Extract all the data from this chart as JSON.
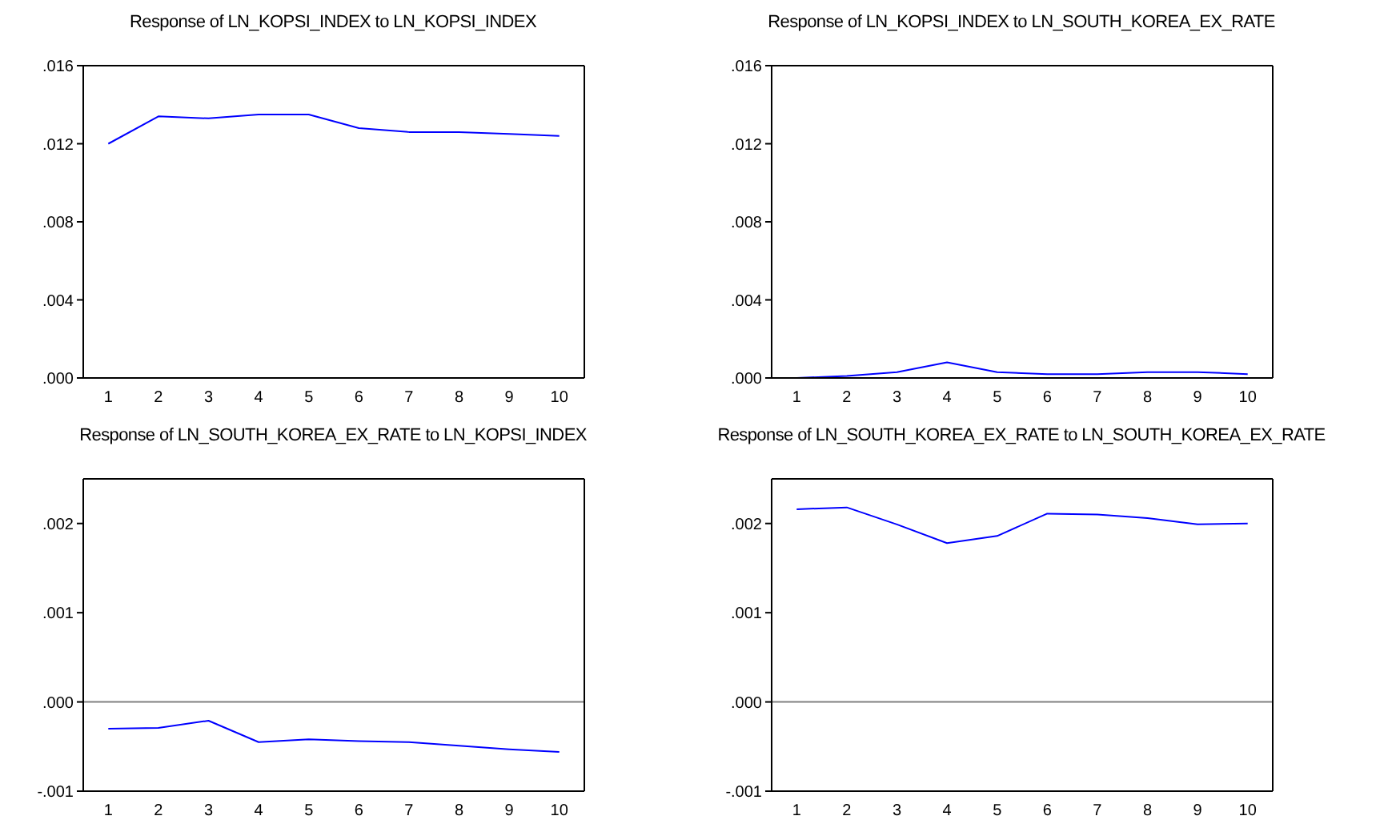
{
  "chart_data": [
    {
      "type": "line",
      "title": "Response of LN_KOPSI_INDEX to LN_KOPSI_INDEX",
      "categories": [
        "1",
        "2",
        "3",
        "4",
        "5",
        "6",
        "7",
        "8",
        "9",
        "10"
      ],
      "series": [
        {
          "color": "#0000ff",
          "values": [
            0.012,
            0.0134,
            0.0133,
            0.0135,
            0.0135,
            0.0128,
            0.0126,
            0.0126,
            0.0125,
            0.0124
          ]
        }
      ],
      "ylim": [
        0,
        0.016
      ],
      "yticks": [
        {
          "value": 0,
          "label": ".000"
        },
        {
          "value": 0.004,
          "label": ".004"
        },
        {
          "value": 0.008,
          "label": ".008"
        },
        {
          "value": 0.012,
          "label": ".012"
        },
        {
          "value": 0.016,
          "label": ".016"
        }
      ],
      "grid": false,
      "legend": false
    },
    {
      "type": "line",
      "title": "Response of LN_KOPSI_INDEX to LN_SOUTH_KOREA_EX_RATE",
      "categories": [
        "1",
        "2",
        "3",
        "4",
        "5",
        "6",
        "7",
        "8",
        "9",
        "10"
      ],
      "series": [
        {
          "color": "#0000ff",
          "values": [
            0.0,
            0.0001,
            0.0003,
            0.0008,
            0.0003,
            0.0002,
            0.0002,
            0.0003,
            0.0003,
            0.0002
          ]
        }
      ],
      "ylim": [
        0,
        0.016
      ],
      "yticks": [
        {
          "value": 0,
          "label": ".000"
        },
        {
          "value": 0.004,
          "label": ".004"
        },
        {
          "value": 0.008,
          "label": ".008"
        },
        {
          "value": 0.012,
          "label": ".012"
        },
        {
          "value": 0.016,
          "label": ".016"
        }
      ],
      "grid": false,
      "legend": false
    },
    {
      "type": "line",
      "title": "Response of LN_SOUTH_KOREA_EX_RATE to LN_KOPSI_INDEX",
      "categories": [
        "1",
        "2",
        "3",
        "4",
        "5",
        "6",
        "7",
        "8",
        "9",
        "10"
      ],
      "series": [
        {
          "color": "#0000ff",
          "values": [
            -0.0003,
            -0.00029,
            -0.00021,
            -0.00045,
            -0.00042,
            -0.00044,
            -0.00045,
            -0.00049,
            -0.00053,
            -0.00056
          ]
        }
      ],
      "ylim": [
        -0.001,
        0.0025
      ],
      "yticks": [
        {
          "value": -0.001,
          "label": "-.001"
        },
        {
          "value": 0,
          "label": ".000"
        },
        {
          "value": 0.001,
          "label": ".001"
        },
        {
          "value": 0.002,
          "label": ".002"
        }
      ],
      "ref_lines": [
        {
          "axis": "y",
          "value": 0,
          "color": "#808080"
        }
      ],
      "grid": false,
      "legend": false
    },
    {
      "type": "line",
      "title": "Response of LN_SOUTH_KOREA_EX_RATE to LN_SOUTH_KOREA_EX_RATE",
      "categories": [
        "1",
        "2",
        "3",
        "4",
        "5",
        "6",
        "7",
        "8",
        "9",
        "10"
      ],
      "series": [
        {
          "color": "#0000ff",
          "values": [
            0.00216,
            0.00218,
            0.00199,
            0.00178,
            0.00186,
            0.00211,
            0.0021,
            0.00206,
            0.00199,
            0.002
          ]
        }
      ],
      "ylim": [
        -0.001,
        0.0025
      ],
      "yticks": [
        {
          "value": -0.001,
          "label": "-.001"
        },
        {
          "value": 0,
          "label": ".000"
        },
        {
          "value": 0.001,
          "label": ".001"
        },
        {
          "value": 0.002,
          "label": ".002"
        }
      ],
      "ref_lines": [
        {
          "axis": "y",
          "value": 0,
          "color": "#808080"
        }
      ],
      "grid": false,
      "legend": false
    }
  ]
}
